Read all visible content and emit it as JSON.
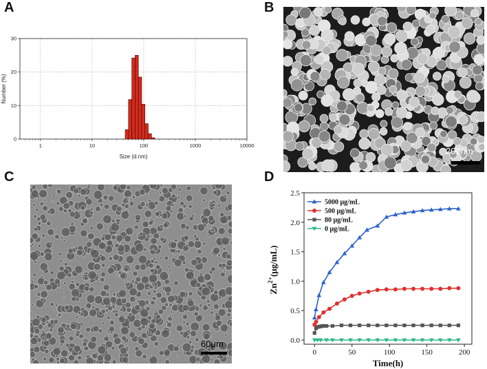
{
  "panels": {
    "a": "A",
    "b": "B",
    "c": "C",
    "d": "D"
  },
  "images": {
    "b": {
      "scale_label": "200nm"
    },
    "c": {
      "scale_label": "60μm"
    }
  },
  "chart_data": [
    {
      "panel": "A",
      "type": "bar",
      "xlabel": "Size (d.nm)",
      "ylabel": "Number (%)",
      "x_scale": "log",
      "xlim": [
        0.4,
        10000
      ],
      "ylim": [
        0,
        30
      ],
      "x_ticks": [
        1,
        10,
        100,
        1000,
        10000
      ],
      "x_tick_labels": [
        "1",
        "10",
        "100",
        "1000",
        "10000"
      ],
      "y_ticks": [
        0,
        10,
        20,
        30
      ],
      "y_tick_labels": [
        "0",
        "10",
        "20",
        "30"
      ],
      "grid": true,
      "bar_color": "#d42a1c",
      "series": [
        {
          "bins": [
            {
              "from": 43.8,
              "to": 50.7,
              "value": 2.8
            },
            {
              "from": 50.7,
              "to": 58.8,
              "value": 11.8
            },
            {
              "from": 58.8,
              "to": 68.1,
              "value": 24.2
            },
            {
              "from": 68.1,
              "to": 78.8,
              "value": 25.0
            },
            {
              "from": 78.8,
              "to": 91.3,
              "value": 18.5
            },
            {
              "from": 91.3,
              "to": 105.7,
              "value": 10.4
            },
            {
              "from": 105.7,
              "to": 122.4,
              "value": 4.6
            },
            {
              "from": 122.4,
              "to": 141.8,
              "value": 1.6
            },
            {
              "from": 141.8,
              "to": 164.2,
              "value": 0.4
            }
          ]
        }
      ]
    },
    {
      "panel": "D",
      "type": "line",
      "xlabel": "Time(h)",
      "ylabel_main": "Zn",
      "ylabel_sup": "2+",
      "ylabel_rest": "(μg/mL)",
      "xlim": [
        -14,
        210
      ],
      "ylim": [
        -0.07,
        2.5
      ],
      "x_ticks": [
        0,
        50,
        100,
        150,
        200
      ],
      "x_tick_labels": [
        "0",
        "50",
        "100",
        "150",
        "200"
      ],
      "y_ticks": [
        0.0,
        0.5,
        1.0,
        1.5,
        2.0,
        2.5
      ],
      "y_tick_labels": [
        "0.0",
        "0.5",
        "1.0",
        "1.5",
        "2.0",
        "2.5"
      ],
      "legend_position": "top-left",
      "series": [
        {
          "name": "5000 μg/mL",
          "color": "#2a62c8",
          "marker": "triangle-up",
          "x": [
            0,
            2,
            6,
            12,
            20,
            30,
            40,
            50,
            60,
            70,
            84,
            96,
            108,
            120,
            132,
            144,
            156,
            168,
            180,
            192
          ],
          "y": [
            0.38,
            0.52,
            0.76,
            0.98,
            1.15,
            1.32,
            1.47,
            1.6,
            1.74,
            1.87,
            1.94,
            2.09,
            2.13,
            2.16,
            2.18,
            2.2,
            2.21,
            2.22,
            2.23,
            2.23
          ]
        },
        {
          "name": "500 μg/mL",
          "color": "#e03030",
          "marker": "circle",
          "x": [
            0,
            2,
            6,
            12,
            20,
            30,
            40,
            50,
            60,
            72,
            84,
            96,
            108,
            120,
            132,
            144,
            156,
            168,
            180,
            192
          ],
          "y": [
            0.26,
            0.31,
            0.39,
            0.47,
            0.53,
            0.62,
            0.69,
            0.75,
            0.79,
            0.82,
            0.85,
            0.86,
            0.86,
            0.87,
            0.87,
            0.87,
            0.87,
            0.87,
            0.88,
            0.88
          ],
          "marker_every": 2
        },
        {
          "name": "80 μg/mL",
          "color": "#555555",
          "marker": "square",
          "x": [
            0,
            2,
            4,
            6,
            8,
            10,
            12,
            16,
            24,
            36,
            48,
            60,
            72,
            84,
            96,
            108,
            120,
            132,
            144,
            156,
            168,
            180,
            192
          ],
          "y": [
            0.12,
            0.2,
            0.22,
            0.23,
            0.23,
            0.24,
            0.24,
            0.24,
            0.24,
            0.25,
            0.25,
            0.25,
            0.25,
            0.25,
            0.25,
            0.25,
            0.25,
            0.25,
            0.25,
            0.25,
            0.25,
            0.25,
            0.25
          ]
        },
        {
          "name": "0 μg/mL",
          "color": "#2fb98a",
          "marker": "triangle-down",
          "x": [
            0,
            4,
            8,
            16,
            24,
            36,
            48,
            60,
            72,
            84,
            96,
            108,
            120,
            132,
            144,
            156,
            168,
            180,
            192
          ],
          "y": [
            0.0,
            0.0,
            0.0,
            0.0,
            0.0,
            0.0,
            0.0,
            0.0,
            0.0,
            0.0,
            0.0,
            0.0,
            0.0,
            0.0,
            0.0,
            0.0,
            0.0,
            0.0,
            0.0
          ]
        }
      ]
    }
  ]
}
